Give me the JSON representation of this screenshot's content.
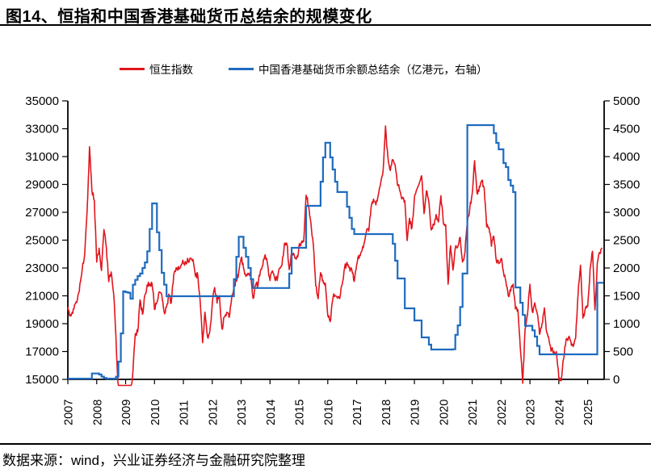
{
  "header": {
    "title": "图14、恒指和中国香港基础货币总结余的规模变化"
  },
  "legend": [
    {
      "label": "恒生指数",
      "color": "#e1151d"
    },
    {
      "label": "中国香港基础货币余额总结余（亿港元，右轴）",
      "color": "#1e6bbf"
    }
  ],
  "footer": {
    "source": "数据来源：wind，兴业证券经济与金融研究院整理"
  },
  "chart_data": {
    "type": "line",
    "title": "图14、恒指和中国香港基础货币总结余的规模变化",
    "x_start": "2007-01",
    "x_end": "2025-07",
    "freq": "monthly",
    "grid": false,
    "legend_position": "top",
    "x_tick_labels": [
      "2007",
      "2008",
      "2009",
      "2010",
      "2011",
      "2012",
      "2013",
      "2014",
      "2015",
      "2016",
      "2017",
      "2018",
      "2019",
      "2020",
      "2021",
      "2022",
      "2023",
      "2024",
      "2025"
    ],
    "left_axis": {
      "min": 15000,
      "max": 35000,
      "tick_step": 2000,
      "ticks": [
        15000,
        17000,
        19000,
        21000,
        23000,
        25000,
        27000,
        29000,
        31000,
        33000,
        35000
      ]
    },
    "right_axis": {
      "min": 0,
      "max": 5000,
      "tick_step": 500,
      "ticks": [
        0,
        500,
        1000,
        1500,
        2000,
        2500,
        3000,
        3500,
        4000,
        4500,
        5000
      ]
    },
    "series": [
      {
        "name": "恒生指数",
        "axis": "left",
        "style": "jagged-line",
        "color": "#e1151d",
        "values": [
          20106,
          19652,
          19801,
          20319,
          20634,
          21773,
          22870,
          23984,
          27142,
          31650,
          28643,
          27813,
          23456,
          24332,
          22849,
          25755,
          24533,
          22102,
          22731,
          21262,
          18016,
          13968,
          13888,
          14387,
          13278,
          12812,
          13576,
          15521,
          18171,
          18378,
          20573,
          19724,
          20955,
          21753,
          21822,
          21873,
          20122,
          20609,
          21239,
          21109,
          19765,
          20129,
          21030,
          20537,
          22358,
          23096,
          23007,
          23035,
          23447,
          23338,
          23528,
          23721,
          23684,
          22398,
          22440,
          20535,
          17592,
          19865,
          17989,
          18434,
          20390,
          21680,
          20556,
          21094,
          18629,
          19442,
          19796,
          19483,
          20840,
          21641,
          22030,
          22657,
          23729,
          23020,
          22300,
          22737,
          22392,
          20803,
          21884,
          21731,
          22860,
          23206,
          23881,
          23306,
          22035,
          22837,
          22151,
          22134,
          23082,
          23191,
          24757,
          24742,
          22933,
          23998,
          23987,
          23605,
          24507,
          24823,
          24901,
          28300,
          27424,
          26250,
          24636,
          21671,
          20846,
          22640,
          21996,
          21914,
          19683,
          19112,
          20777,
          21067,
          20815,
          20794,
          21891,
          22977,
          23297,
          22935,
          22790,
          22001,
          23361,
          23741,
          24112,
          24615,
          25661,
          25765,
          27324,
          27970,
          27554,
          28246,
          29177,
          29919,
          33100,
          30845,
          30093,
          30808,
          30469,
          28955,
          28583,
          27889,
          27789,
          24980,
          26507,
          25846,
          27942,
          28633,
          29051,
          29699,
          26901,
          28543,
          27778,
          25725,
          26092,
          26907,
          26346,
          28190,
          26313,
          26130,
          21700,
          24644,
          22961,
          24427,
          24595,
          25177,
          23459,
          24107,
          26341,
          27231,
          28284,
          30800,
          28378,
          28742,
          29152,
          28828,
          25961,
          25879,
          24576,
          25377,
          23476,
          23398,
          23802,
          22713,
          21997,
          21089,
          21415,
          21860,
          20157,
          19954,
          17223,
          14687,
          18597,
          19781,
          21842,
          19786,
          20400,
          19894,
          18234,
          18916,
          20079,
          18382,
          17810,
          17112,
          17043,
          17047,
          15100,
          14940,
          16541,
          17763,
          18080,
          17719,
          17345,
          17989,
          21134,
          23099,
          19424,
          20060,
          20225,
          22941,
          24300,
          19900,
          23290,
          24072,
          24450
        ]
      },
      {
        "name": "中国香港基础货币余额总结余（亿港元，右轴）",
        "axis": "right",
        "style": "step-line",
        "color": "#1e6bbf",
        "values": [
          13,
          13,
          13,
          13,
          13,
          13,
          13,
          13,
          13,
          13,
          106,
          106,
          106,
          87,
          50,
          25,
          13,
          13,
          13,
          13,
          48,
          319,
          826,
          1580,
          1565,
          1557,
          1449,
          1700,
          1787,
          1855,
          1900,
          2000,
          2100,
          2300,
          2700,
          3160,
          3160,
          2640,
          2320,
          1913,
          1700,
          1493,
          1493,
          1493,
          1493,
          1493,
          1493,
          1493,
          1493,
          1493,
          1493,
          1493,
          1493,
          1493,
          1493,
          1493,
          1493,
          1493,
          1493,
          1493,
          1493,
          1493,
          1493,
          1493,
          1493,
          1493,
          1493,
          1493,
          1493,
          1800,
          2200,
          2560,
          2560,
          2362,
          2200,
          2000,
          1800,
          1640,
          1640,
          1640,
          1640,
          1640,
          1640,
          1640,
          1640,
          1640,
          1640,
          1640,
          1640,
          1640,
          1640,
          1640,
          1900,
          2362,
          2362,
          2362,
          2362,
          2362,
          2362,
          3116,
          3116,
          3116,
          3116,
          3116,
          3116,
          3550,
          3985,
          4250,
          4250,
          3985,
          3768,
          3550,
          3364,
          3364,
          3364,
          3364,
          3100,
          2900,
          2700,
          2608,
          2608,
          2608,
          2608,
          2608,
          2608,
          2608,
          2608,
          2608,
          2608,
          2608,
          2608,
          2608,
          2608,
          2608,
          2608,
          2435,
          2130,
          1811,
          1811,
          1811,
          1275,
          1275,
          1275,
          1275,
          1058,
          1058,
          1058,
          754,
          754,
          754,
          623,
          536,
          536,
          536,
          536,
          536,
          536,
          536,
          536,
          536,
          540,
          800,
          970,
          1300,
          1900,
          1900,
          4565,
          4565,
          4565,
          4565,
          4565,
          4565,
          4565,
          4565,
          4565,
          4565,
          4565,
          4420,
          4246,
          4130,
          4130,
          3884,
          3811,
          3579,
          3478,
          3362,
          1650,
          1650,
          1376,
          1156,
          962,
          962,
          962,
          880,
          768,
          600,
          449,
          449,
          449,
          449,
          449,
          449,
          449,
          449,
          449,
          449,
          449,
          449,
          449,
          449,
          449,
          449,
          449,
          449,
          449,
          449,
          449,
          449,
          449,
          449,
          1735,
          1735,
          1735
        ]
      }
    ]
  }
}
